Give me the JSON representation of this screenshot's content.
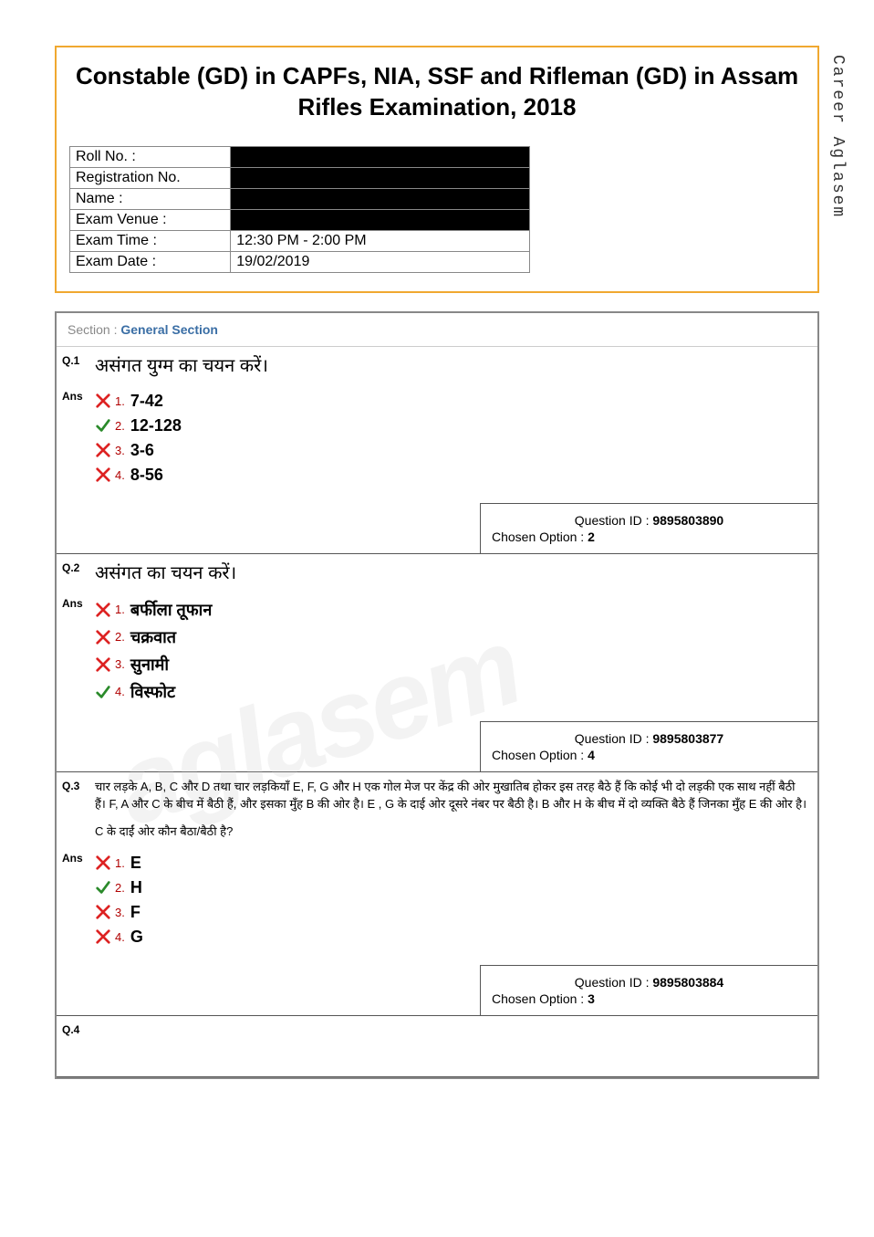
{
  "side_watermark": "Career Aglasem",
  "bg_watermark": "aglasem",
  "header": {
    "title": "Constable (GD) in CAPFs, NIA, SSF and Rifleman (GD) in Assam Rifles Examination, 2018",
    "rows": [
      {
        "label": "Roll No. :",
        "value": "",
        "blackout": true
      },
      {
        "label": "Registration No.",
        "value": "",
        "blackout": true
      },
      {
        "label": "Name :",
        "value": "",
        "blackout": true
      },
      {
        "label": "Exam Venue :",
        "value": "",
        "blackout": true
      },
      {
        "label": "Exam Time :",
        "value": "12:30 PM - 2:00 PM",
        "blackout": false
      },
      {
        "label": "Exam Date :",
        "value": "19/02/2019",
        "blackout": false
      }
    ]
  },
  "section": {
    "prefix": "Section : ",
    "name": "General Section"
  },
  "questions": [
    {
      "num": "Q.1",
      "text": "असंगत युग्म का चयन करें।",
      "text_small": false,
      "options": [
        {
          "num": "1.",
          "text": "7-42",
          "correct": false
        },
        {
          "num": "2.",
          "text": "12-128",
          "correct": true
        },
        {
          "num": "3.",
          "text": "3-6",
          "correct": false
        },
        {
          "num": "4.",
          "text": "8-56",
          "correct": false
        }
      ],
      "meta": {
        "qid_label": "Question ID : ",
        "qid": "9895803890",
        "chosen_label": "Chosen Option : ",
        "chosen": "2"
      }
    },
    {
      "num": "Q.2",
      "text": "असंगत का चयन करें।",
      "text_small": false,
      "options": [
        {
          "num": "1.",
          "text": "बर्फीला तूफान",
          "correct": false
        },
        {
          "num": "2.",
          "text": "चक्रवात",
          "correct": false
        },
        {
          "num": "3.",
          "text": "सुनामी",
          "correct": false
        },
        {
          "num": "4.",
          "text": "विस्फोट",
          "correct": true
        }
      ],
      "meta": {
        "qid_label": "Question ID : ",
        "qid": "9895803877",
        "chosen_label": "Chosen Option : ",
        "chosen": "4"
      }
    },
    {
      "num": "Q.3",
      "text": "चार लड़के A, B, C और D तथा चार लड़कियाँ E, F, G और H एक गोल मेज पर केंद्र की ओर मुखातिब होकर इस तरह बैठे हैं कि कोई भी दो लड़की एक साथ नहीं बैठी हैं। F, A और C के बीच में बैठी हैं, और इसका मुँह B की ओर है।  E , G के दाई ओर दूसरे नंबर पर बैठी है। B और H के बीच में दो व्यक्ति बैठे हैं जिनका मुँह E की ओर है।",
      "sub_text": "C के दाईं ओर कौन बैठा/बैठी है?",
      "text_small": true,
      "options": [
        {
          "num": "1.",
          "text": "E",
          "correct": false
        },
        {
          "num": "2.",
          "text": "H",
          "correct": true
        },
        {
          "num": "3.",
          "text": "F",
          "correct": false
        },
        {
          "num": "4.",
          "text": "G",
          "correct": false
        }
      ],
      "meta": {
        "qid_label": "Question ID : ",
        "qid": "9895803884",
        "chosen_label": "Chosen Option : ",
        "chosen": "3"
      }
    },
    {
      "num": "Q.4",
      "text": "",
      "text_small": false,
      "options": [],
      "meta": null
    }
  ],
  "ans_label": "Ans",
  "colors": {
    "header_border": "#f0a830",
    "wrong": "#d22",
    "correct": "#2a8a2a",
    "opt_num": "#b00000",
    "section_name": "#3a6ea5"
  }
}
